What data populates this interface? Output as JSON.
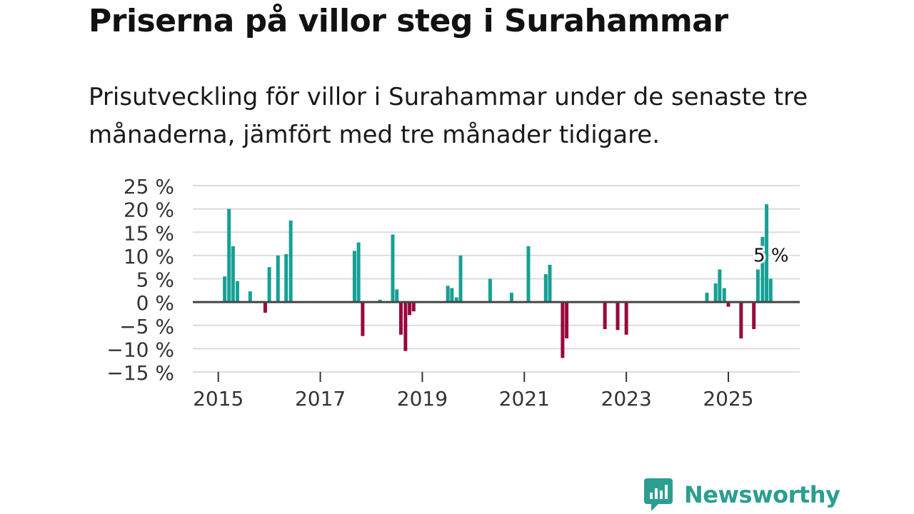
{
  "title": "Priserna på villor steg i Surahammar",
  "subtitle": "Prisutveckling för villor i Surahammar under de senaste tre månaderna, jämfört med tre månader tidigare.",
  "colors": {
    "positive": "#17a095",
    "negative": "#98093d",
    "grid": "#dcdcdc",
    "zero_line": "#444444",
    "logo": "#2b9e90"
  },
  "logo": {
    "text": "Newsworthy",
    "icon": "chart-bubble-icon"
  },
  "chart_data": {
    "type": "bar",
    "title": "Priserna på villor steg i Surahammar",
    "xlabel": "",
    "ylabel": "",
    "ylim": [
      -15,
      25
    ],
    "xlim": [
      2014.5,
      2026.4
    ],
    "y_ticks": [
      25,
      20,
      15,
      10,
      5,
      0,
      -5,
      -10,
      -15
    ],
    "y_tick_labels": [
      "25 %",
      "20 %",
      "15 %",
      "10 %",
      "5 %",
      "0 %",
      "−5 %",
      "−10 %",
      "−15 %"
    ],
    "x_ticks": [
      2015,
      2017,
      2019,
      2021,
      2023,
      2025
    ],
    "x_tick_labels": [
      "2015",
      "2017",
      "2019",
      "2021",
      "2023",
      "2025"
    ],
    "grid": true,
    "annotation": {
      "x": 2025.67,
      "y": 5,
      "label": "5 %"
    },
    "x": [
      2015.125,
      2015.21,
      2015.29,
      2015.375,
      2015.625,
      2015.92,
      2016.0,
      2016.17,
      2016.33,
      2016.42,
      2017.67,
      2017.75,
      2017.83,
      2018.17,
      2018.42,
      2018.5,
      2018.58,
      2018.67,
      2018.75,
      2018.83,
      2019.5,
      2019.58,
      2019.67,
      2019.75,
      2020.33,
      2020.75,
      2021.08,
      2021.42,
      2021.5,
      2021.75,
      2021.83,
      2022.58,
      2022.83,
      2023.0,
      2024.58,
      2024.75,
      2024.83,
      2024.92,
      2025.0,
      2025.25,
      2025.5,
      2025.58,
      2025.67,
      2025.75,
      2025.83
    ],
    "values": [
      5.5,
      20,
      12,
      4.5,
      2.3,
      -2.3,
      7.5,
      10,
      10.3,
      17.5,
      11,
      12.8,
      -7.3,
      0.5,
      14.5,
      2.7,
      -7,
      -10.5,
      -2.8,
      -2,
      3.5,
      3,
      1,
      10,
      5,
      2,
      12,
      6,
      8,
      -12,
      -7.8,
      -5.8,
      -6,
      -7,
      2,
      4,
      7,
      3,
      -1,
      -7.8,
      -5.8,
      7,
      14,
      21,
      5
    ]
  }
}
